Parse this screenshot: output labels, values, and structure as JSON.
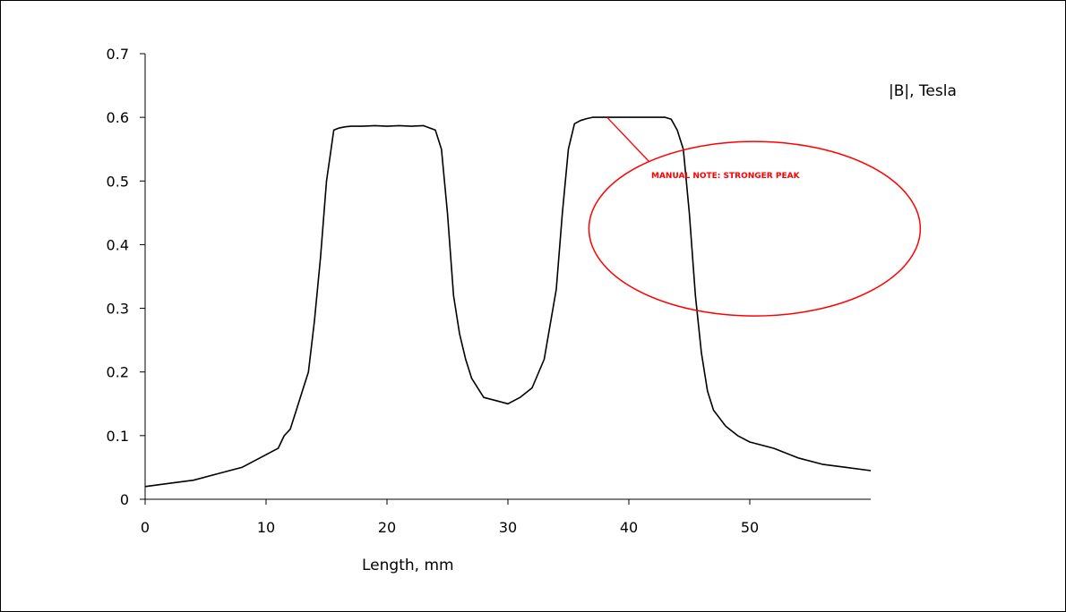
{
  "chart_data": {
    "type": "line",
    "title": "",
    "xlabel": "Length, mm",
    "ylabel": "|B|, Tesla",
    "xlim": [
      0,
      60
    ],
    "ylim": [
      0,
      0.7
    ],
    "x_ticks": [
      "0",
      "10",
      "20",
      "30",
      "40",
      "50"
    ],
    "y_ticks": [
      "0",
      "0.1",
      "0.2",
      "0.3",
      "0.4",
      "0.5",
      "0.6",
      "0.7"
    ],
    "grid": false,
    "legend": "none",
    "line_color": "#000000",
    "series": [
      {
        "x": [
          0,
          2,
          4,
          6,
          8,
          9,
          10,
          10.5,
          11,
          11.5,
          12,
          12.5,
          13,
          13.5,
          14,
          14.5,
          15,
          15.3,
          15.6,
          16,
          16.5,
          17,
          18,
          19,
          20,
          21,
          22,
          23,
          24,
          24.5,
          25,
          25.5,
          26,
          26.5,
          27,
          28,
          29,
          30,
          31,
          32,
          33,
          34,
          34.5,
          35,
          35.5,
          36,
          36.5,
          37,
          38,
          40,
          42,
          43,
          43.5,
          44,
          44.5,
          45,
          45.5,
          46,
          46.5,
          47,
          48,
          49,
          50,
          52,
          54,
          56,
          58,
          60
        ],
        "y": [
          0.02,
          0.025,
          0.03,
          0.04,
          0.05,
          0.06,
          0.07,
          0.075,
          0.08,
          0.1,
          0.11,
          0.14,
          0.17,
          0.2,
          0.28,
          0.38,
          0.5,
          0.54,
          0.58,
          0.583,
          0.585,
          0.586,
          0.586,
          0.587,
          0.586,
          0.587,
          0.586,
          0.587,
          0.58,
          0.55,
          0.45,
          0.32,
          0.26,
          0.22,
          0.19,
          0.16,
          0.155,
          0.15,
          0.16,
          0.175,
          0.22,
          0.33,
          0.45,
          0.55,
          0.59,
          0.595,
          0.598,
          0.6,
          0.6,
          0.6,
          0.6,
          0.6,
          0.597,
          0.58,
          0.55,
          0.45,
          0.32,
          0.23,
          0.17,
          0.14,
          0.115,
          0.1,
          0.09,
          0.08,
          0.065,
          0.055,
          0.05,
          0.045
        ]
      }
    ],
    "annotation": {
      "text": "MANUAL NOTE: STRONGER PEAK",
      "color": "#ff0000",
      "pointer_x": 38.2,
      "pointer_y": 0.6,
      "ellipse_center_x": 50.4,
      "ellipse_center_y": 0.425,
      "ellipse_half_width": 13.7,
      "ellipse_half_height": 0.137
    }
  }
}
